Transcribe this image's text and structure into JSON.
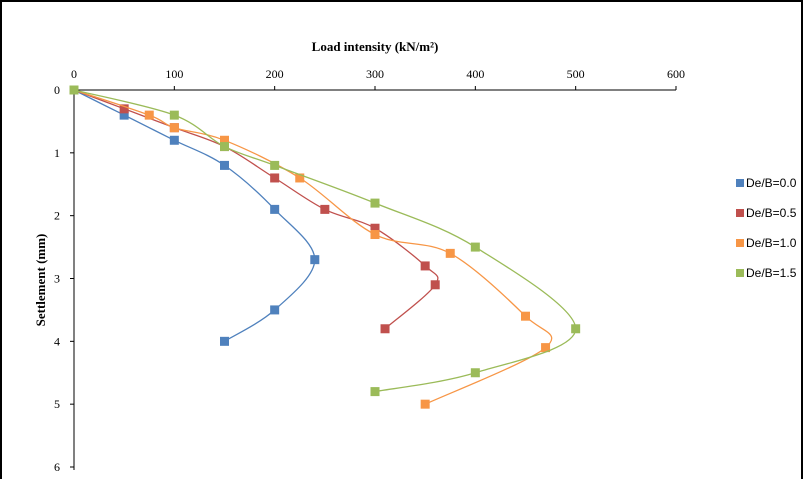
{
  "chart_data": {
    "type": "scatter",
    "title": "",
    "xlabel": "Load intensity (kN/m²)",
    "ylabel": "Settlement (mm)",
    "x_axis_position": "top",
    "y_axis_inverted": true,
    "xlim": [
      0,
      600
    ],
    "ylim": [
      0,
      6
    ],
    "x_ticks": [
      "0",
      "100",
      "200",
      "300",
      "400",
      "500",
      "600"
    ],
    "y_ticks": [
      "0",
      "1",
      "2",
      "3",
      "4",
      "5",
      "6"
    ],
    "grid": false,
    "legend_position": "right",
    "series": [
      {
        "name": "De/B=0.0",
        "color": "#4f81bd",
        "points": [
          [
            0,
            0
          ],
          [
            50,
            0.4
          ],
          [
            100,
            0.8
          ],
          [
            150,
            1.2
          ],
          [
            200,
            1.9
          ],
          [
            240,
            2.7
          ],
          [
            200,
            3.5
          ],
          [
            150,
            4.0
          ]
        ]
      },
      {
        "name": "De/B=0.5",
        "color": "#c0504d",
        "points": [
          [
            0,
            0
          ],
          [
            50,
            0.3
          ],
          [
            100,
            0.6
          ],
          [
            150,
            0.9
          ],
          [
            200,
            1.4
          ],
          [
            250,
            1.9
          ],
          [
            300,
            2.2
          ],
          [
            350,
            2.8
          ],
          [
            360,
            3.1
          ],
          [
            310,
            3.8
          ]
        ]
      },
      {
        "name": "De/B=1.0",
        "color": "#f79646",
        "points": [
          [
            0,
            0
          ],
          [
            75,
            0.4
          ],
          [
            100,
            0.6
          ],
          [
            150,
            0.8
          ],
          [
            225,
            1.4
          ],
          [
            300,
            2.3
          ],
          [
            375,
            2.6
          ],
          [
            450,
            3.6
          ],
          [
            470,
            4.1
          ],
          [
            350,
            5.0
          ]
        ]
      },
      {
        "name": "De/B=1.5",
        "color": "#9bbb59",
        "points": [
          [
            0,
            0
          ],
          [
            100,
            0.4
          ],
          [
            150,
            0.9
          ],
          [
            200,
            1.2
          ],
          [
            300,
            1.8
          ],
          [
            400,
            2.5
          ],
          [
            500,
            3.8
          ],
          [
            400,
            4.5
          ],
          [
            300,
            4.8
          ]
        ]
      }
    ]
  }
}
